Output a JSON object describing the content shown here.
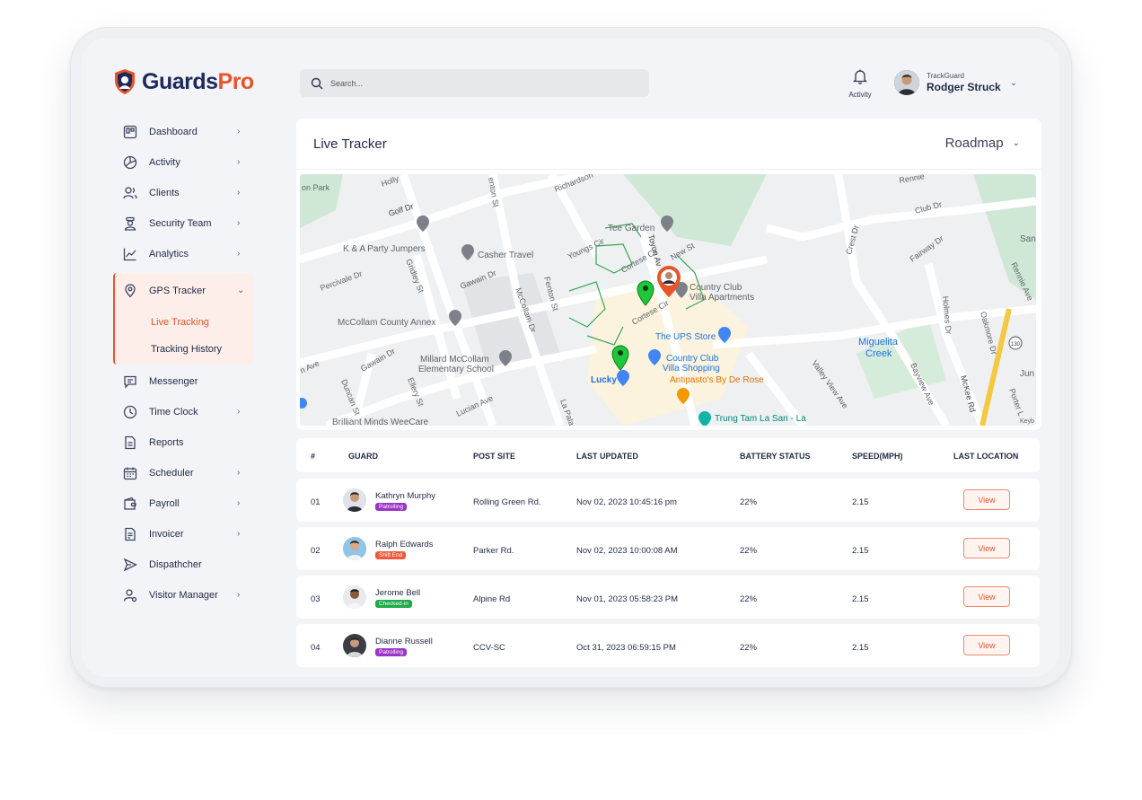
{
  "brand": {
    "name_main": "Guards",
    "name_accent": "Pro",
    "accent_color": "#e8542a",
    "primary_color": "#1f2a5c"
  },
  "search": {
    "placeholder": "Search..."
  },
  "header": {
    "activity_label": "Activity",
    "user_org": "TrackGuard",
    "user_name": "Rodger Struck"
  },
  "sidebar": {
    "items_top": [
      {
        "label": "Dashboard",
        "icon": "dashboard-icon",
        "has_submenu": true
      },
      {
        "label": "Activity",
        "icon": "activity-icon",
        "has_submenu": true
      },
      {
        "label": "Clients",
        "icon": "clients-icon",
        "has_submenu": true
      },
      {
        "label": "Security Team",
        "icon": "security-team-icon",
        "has_submenu": true
      },
      {
        "label": "Analytics",
        "icon": "analytics-icon",
        "has_submenu": true
      }
    ],
    "gps": {
      "label": "GPS Tracker",
      "icon": "location-pin-icon",
      "sub": [
        "Live Tracking",
        "Tracking History"
      ],
      "active_sub": "Live Tracking"
    },
    "items_bottom": [
      {
        "label": "Messenger",
        "icon": "messenger-icon",
        "has_submenu": false
      },
      {
        "label": "Time Clock",
        "icon": "clock-icon",
        "has_submenu": true
      },
      {
        "label": "Reports",
        "icon": "reports-icon",
        "has_submenu": false
      },
      {
        "label": "Scheduler",
        "icon": "calendar-icon",
        "has_submenu": true
      },
      {
        "label": "Payroll",
        "icon": "wallet-icon",
        "has_submenu": true
      },
      {
        "label": "Invoicer",
        "icon": "invoice-icon",
        "has_submenu": true
      },
      {
        "label": "Dispathcher",
        "icon": "send-icon",
        "has_submenu": false
      },
      {
        "label": "Visitor Manager",
        "icon": "visitor-icon",
        "has_submenu": true
      }
    ]
  },
  "tracker": {
    "title": "Live Tracker",
    "map_type": "Roadmap",
    "map_labels": {
      "park": "on Park",
      "golf": "Golf Dr",
      "holly": "Holly",
      "benton": "enton St",
      "richardson": "Richardson",
      "tee": "Tee Garden",
      "toyon": "Toyon Av",
      "newst": "New St",
      "party": "K & A Party Jumpers",
      "casher": "Casher Travel",
      "percivale": "Percivale Dr",
      "gridley": "Gridley St",
      "gawain": "Gawain Dr",
      "youngs": "Youngs Cir",
      "cortese1": "Cortese Cir",
      "cortese2": "Cortese Cir",
      "fenton": "Fenton St",
      "mccollamdr": "McCollam Dr",
      "countryclub": "Country Club",
      "villaapts": "Villa Apartments",
      "annex": "McCollam County Annex",
      "ups": "The UPS Store",
      "millard1": "Millard McCollam",
      "millard2": "Elementary School",
      "ave": "n Ave",
      "gawain2": "Gawain Dr",
      "ccvs1": "Country Club",
      "ccvs2": "Villa Shopping",
      "lucky": "Lucky",
      "antipasto": "Antipasto's By De Rose",
      "duncan": "Duncan St",
      "ellery": "Ellery St",
      "lucian": "Lucian Ave",
      "lapala": "La Pala",
      "brilliant": "Brilliant Minds WeeCare",
      "trung": "Trung Tam La San - La",
      "clubdr": "Club Dr",
      "rennie": "Rennie",
      "crest": "Crest Dr",
      "fairway": "Fairway Dr",
      "holmes": "Holmes Dr",
      "oakmore": "Oakmore Dr",
      "miguelita1": "Miguelita",
      "miguelita2": "Creek",
      "valleyview": "Valley View Ave",
      "bayview": "Bayview Ave",
      "mckee": "McKee Rd",
      "porter": "Porter L",
      "rennieave": "Rennie Ave",
      "san": "San",
      "jun": "Jun",
      "hwy": "130",
      "keyb": "Keyb"
    }
  },
  "table": {
    "headers": [
      "#",
      "GUARD",
      "POST SITE",
      "LAST UPDATED",
      "BATTERY STATUS",
      "SPEED(MPH)",
      "LAST LOCATION"
    ],
    "rows": [
      {
        "num": "01",
        "guard": "Kathryn Murphy",
        "status": "Patrolling",
        "status_color": "#9b35c7",
        "post": "Rolling Green Rd.",
        "updated": "Nov 02, 2023 10:45:16 pm",
        "battery": "22%",
        "speed": "2.15",
        "action": "View"
      },
      {
        "num": "02",
        "guard": "Ralph Edwards",
        "status": "Shift End",
        "status_color": "#f05a3c",
        "post": "Parker Rd.",
        "updated": "Nov 02, 2023 10:00:08 AM",
        "battery": "22%",
        "speed": "2.15",
        "action": "View"
      },
      {
        "num": "03",
        "guard": "Jerome Bell",
        "status": "Checked-in",
        "status_color": "#1faa4a",
        "post": "Alpine Rd",
        "updated": "Nov 01, 2023 05:58:23 PM",
        "battery": "22%",
        "speed": "2.15",
        "action": "View"
      },
      {
        "num": "04",
        "guard": "Dianne Russell",
        "status": "Patrolling",
        "status_color": "#9b35c7",
        "post": "CCV-SC",
        "updated": "Oct 31, 2023 06:59:15 PM",
        "battery": "22%",
        "speed": "2.15",
        "action": "View"
      }
    ]
  }
}
